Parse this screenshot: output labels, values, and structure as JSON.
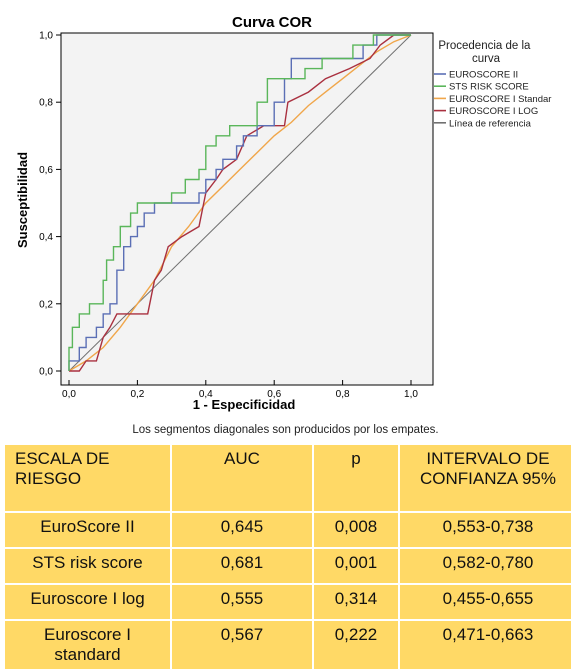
{
  "chart_data": {
    "type": "line",
    "title": "Curva COR",
    "xlabel": "1 - Especificidad",
    "ylabel": "Susceptibilidad",
    "xlim": [
      0,
      1
    ],
    "ylim": [
      0,
      1
    ],
    "x_ticks": [
      "0,0",
      "0,2",
      "0,4",
      "0,6",
      "0,8",
      "1,0"
    ],
    "y_ticks": [
      "0,0",
      "0,2",
      "0,4",
      "0,6",
      "0,8",
      "1,0"
    ],
    "grid": false,
    "legend_position": "right",
    "legend_title": "Procedencia de la curva",
    "series": [
      {
        "name": "EUROSCORE II",
        "color": "#5b6fb5",
        "points": [
          [
            0,
            0
          ],
          [
            0,
            0.03
          ],
          [
            0.03,
            0.03
          ],
          [
            0.03,
            0.07
          ],
          [
            0.05,
            0.07
          ],
          [
            0.05,
            0.1
          ],
          [
            0.08,
            0.1
          ],
          [
            0.08,
            0.13
          ],
          [
            0.1,
            0.13
          ],
          [
            0.1,
            0.17
          ],
          [
            0.12,
            0.17
          ],
          [
            0.12,
            0.2
          ],
          [
            0.14,
            0.2
          ],
          [
            0.14,
            0.3
          ],
          [
            0.16,
            0.3
          ],
          [
            0.16,
            0.37
          ],
          [
            0.18,
            0.37
          ],
          [
            0.18,
            0.4
          ],
          [
            0.2,
            0.4
          ],
          [
            0.2,
            0.43
          ],
          [
            0.22,
            0.43
          ],
          [
            0.22,
            0.47
          ],
          [
            0.25,
            0.47
          ],
          [
            0.25,
            0.5
          ],
          [
            0.38,
            0.5
          ],
          [
            0.38,
            0.53
          ],
          [
            0.4,
            0.53
          ],
          [
            0.4,
            0.57
          ],
          [
            0.43,
            0.57
          ],
          [
            0.43,
            0.6
          ],
          [
            0.45,
            0.6
          ],
          [
            0.45,
            0.63
          ],
          [
            0.49,
            0.63
          ],
          [
            0.49,
            0.67
          ],
          [
            0.51,
            0.67
          ],
          [
            0.51,
            0.7
          ],
          [
            0.55,
            0.7
          ],
          [
            0.55,
            0.73
          ],
          [
            0.6,
            0.73
          ],
          [
            0.6,
            0.8
          ],
          [
            0.63,
            0.8
          ],
          [
            0.63,
            0.87
          ],
          [
            0.65,
            0.87
          ],
          [
            0.65,
            0.93
          ],
          [
            0.86,
            0.93
          ],
          [
            0.86,
            0.97
          ],
          [
            0.9,
            0.97
          ],
          [
            0.9,
            1
          ],
          [
            1,
            1
          ]
        ]
      },
      {
        "name": "STS RISK SCORE",
        "color": "#5ab65a",
        "points": [
          [
            0,
            0
          ],
          [
            0,
            0.07
          ],
          [
            0.01,
            0.07
          ],
          [
            0.01,
            0.13
          ],
          [
            0.03,
            0.13
          ],
          [
            0.03,
            0.17
          ],
          [
            0.06,
            0.17
          ],
          [
            0.06,
            0.2
          ],
          [
            0.1,
            0.2
          ],
          [
            0.1,
            0.27
          ],
          [
            0.11,
            0.27
          ],
          [
            0.11,
            0.33
          ],
          [
            0.13,
            0.33
          ],
          [
            0.13,
            0.37
          ],
          [
            0.15,
            0.37
          ],
          [
            0.15,
            0.43
          ],
          [
            0.18,
            0.43
          ],
          [
            0.18,
            0.47
          ],
          [
            0.2,
            0.47
          ],
          [
            0.2,
            0.5
          ],
          [
            0.3,
            0.5
          ],
          [
            0.3,
            0.53
          ],
          [
            0.34,
            0.53
          ],
          [
            0.34,
            0.57
          ],
          [
            0.38,
            0.57
          ],
          [
            0.38,
            0.6
          ],
          [
            0.4,
            0.6
          ],
          [
            0.4,
            0.67
          ],
          [
            0.43,
            0.67
          ],
          [
            0.43,
            0.7
          ],
          [
            0.47,
            0.7
          ],
          [
            0.47,
            0.73
          ],
          [
            0.55,
            0.73
          ],
          [
            0.55,
            0.8
          ],
          [
            0.58,
            0.8
          ],
          [
            0.58,
            0.87
          ],
          [
            0.69,
            0.87
          ],
          [
            0.69,
            0.9
          ],
          [
            0.74,
            0.9
          ],
          [
            0.74,
            0.93
          ],
          [
            0.83,
            0.93
          ],
          [
            0.83,
            0.97
          ],
          [
            0.89,
            0.97
          ],
          [
            0.89,
            1
          ],
          [
            1,
            1
          ]
        ]
      },
      {
        "name": "EUROSCORE I Standar",
        "color": "#f0a64a",
        "points": [
          [
            0,
            0
          ],
          [
            0.05,
            0.03
          ],
          [
            0.1,
            0.07
          ],
          [
            0.15,
            0.13
          ],
          [
            0.2,
            0.2
          ],
          [
            0.25,
            0.27
          ],
          [
            0.3,
            0.37
          ],
          [
            0.35,
            0.43
          ],
          [
            0.4,
            0.5
          ],
          [
            0.45,
            0.55
          ],
          [
            0.5,
            0.6
          ],
          [
            0.55,
            0.65
          ],
          [
            0.6,
            0.7
          ],
          [
            0.65,
            0.74
          ],
          [
            0.7,
            0.79
          ],
          [
            0.75,
            0.83
          ],
          [
            0.8,
            0.87
          ],
          [
            0.85,
            0.91
          ],
          [
            0.9,
            0.95
          ],
          [
            0.95,
            0.98
          ],
          [
            1,
            1
          ]
        ]
      },
      {
        "name": "EUROSCORE I LOG",
        "color": "#a9303f",
        "points": [
          [
            0,
            0
          ],
          [
            0.03,
            0
          ],
          [
            0.05,
            0.03
          ],
          [
            0.08,
            0.03
          ],
          [
            0.1,
            0.1
          ],
          [
            0.12,
            0.13
          ],
          [
            0.14,
            0.17
          ],
          [
            0.23,
            0.17
          ],
          [
            0.25,
            0.27
          ],
          [
            0.27,
            0.3
          ],
          [
            0.29,
            0.37
          ],
          [
            0.33,
            0.4
          ],
          [
            0.38,
            0.43
          ],
          [
            0.4,
            0.53
          ],
          [
            0.43,
            0.57
          ],
          [
            0.45,
            0.6
          ],
          [
            0.49,
            0.63
          ],
          [
            0.52,
            0.7
          ],
          [
            0.57,
            0.73
          ],
          [
            0.63,
            0.73
          ],
          [
            0.64,
            0.8
          ],
          [
            0.7,
            0.83
          ],
          [
            0.75,
            0.87
          ],
          [
            0.82,
            0.9
          ],
          [
            0.88,
            0.93
          ],
          [
            0.91,
            0.97
          ],
          [
            0.95,
            1
          ],
          [
            1,
            1
          ]
        ]
      },
      {
        "name": "Línea de referencia",
        "color": "#707070",
        "points": [
          [
            0,
            0
          ],
          [
            1,
            1
          ]
        ]
      }
    ]
  },
  "footnote": "Los segmentos diagonales son producidos por los empates.",
  "table": {
    "headers": [
      "ESCALA DE RIESGO",
      "AUC",
      "p",
      "INTERVALO DE CONFIANZA 95%"
    ],
    "rows": [
      [
        "EuroScore II",
        "0,645",
        "0,008",
        "0,553-0,738"
      ],
      [
        "STS risk score",
        "0,681",
        "0,001",
        "0,582-0,780"
      ],
      [
        "Euroscore I log",
        "0,555",
        "0,314",
        "0,455-0,655"
      ],
      [
        "Euroscore I standard",
        "0,567",
        "0,222",
        "0,471-0,663"
      ]
    ]
  }
}
